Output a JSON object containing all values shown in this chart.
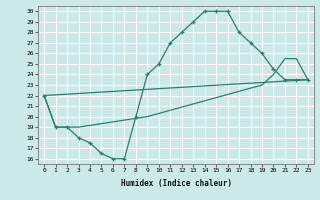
{
  "xlabel": "Humidex (Indice chaleur)",
  "bg_color": "#cce8e8",
  "grid_color": "#aacccc",
  "line_color": "#2e7d6e",
  "xlim": [
    -0.5,
    23.5
  ],
  "ylim": [
    15.5,
    30.5
  ],
  "xticks": [
    0,
    1,
    2,
    3,
    4,
    5,
    6,
    7,
    8,
    9,
    10,
    11,
    12,
    13,
    14,
    15,
    16,
    17,
    18,
    19,
    20,
    21,
    22,
    23
  ],
  "yticks": [
    16,
    17,
    18,
    19,
    20,
    21,
    22,
    23,
    24,
    25,
    26,
    27,
    28,
    29,
    30
  ],
  "line1_x": [
    0,
    1,
    2,
    3,
    4,
    5,
    6,
    7,
    8,
    9,
    10,
    11,
    12,
    13,
    14,
    15,
    16,
    17,
    18,
    19,
    20,
    21,
    22,
    23
  ],
  "line1_y": [
    22,
    19,
    19,
    18,
    17.5,
    16.5,
    16,
    16,
    20,
    24,
    25,
    27,
    28,
    29,
    30,
    30,
    30,
    28,
    27,
    26,
    24.5,
    23.5,
    23.5,
    23.5
  ],
  "line2_x": [
    0,
    1,
    3,
    9,
    19,
    20,
    21,
    22,
    23
  ],
  "line2_y": [
    22,
    19,
    19,
    20,
    23,
    24,
    25.5,
    25.5,
    23.5
  ],
  "line3_x": [
    0,
    23
  ],
  "line3_y": [
    22,
    23.5
  ]
}
